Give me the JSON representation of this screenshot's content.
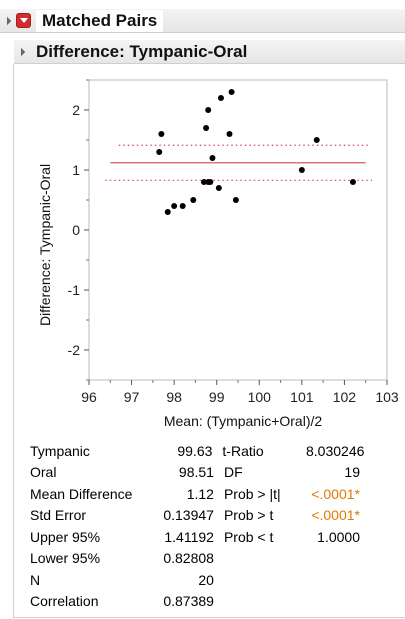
{
  "header": {
    "title": "Matched Pairs",
    "subtitle": "Difference: Tympanic-Oral"
  },
  "chart_data": {
    "type": "scatter",
    "xlabel": "Mean: (Tympanic+Oral)/2",
    "ylabel": "Difference: Tympanic-Oral",
    "xlim": [
      96,
      103
    ],
    "ylim": [
      -2.5,
      2.5
    ],
    "x_ticks": [
      96,
      97,
      98,
      99,
      100,
      101,
      102,
      103
    ],
    "y_ticks": [
      -2,
      -1,
      0,
      1,
      2
    ],
    "mean_difference": 1.12,
    "upper_95": 1.41192,
    "lower_95": 0.82808,
    "line_x_range": [
      96.5,
      102.5
    ],
    "ci_line_x_range": [
      96.7,
      102.6
    ],
    "mean_color": "#d6454f",
    "ci_color": "#d6454f",
    "point_color": "#000000",
    "points": [
      {
        "x": 97.65,
        "y": 1.3
      },
      {
        "x": 97.7,
        "y": 1.6
      },
      {
        "x": 97.85,
        "y": 0.3
      },
      {
        "x": 98.0,
        "y": 0.4
      },
      {
        "x": 98.2,
        "y": 0.4
      },
      {
        "x": 98.45,
        "y": 0.5
      },
      {
        "x": 98.7,
        "y": 0.8
      },
      {
        "x": 98.75,
        "y": 1.7
      },
      {
        "x": 98.8,
        "y": 2.0
      },
      {
        "x": 98.8,
        "y": 0.8
      },
      {
        "x": 98.9,
        "y": 1.2
      },
      {
        "x": 99.05,
        "y": 0.7
      },
      {
        "x": 99.1,
        "y": 2.2
      },
      {
        "x": 99.3,
        "y": 1.6
      },
      {
        "x": 99.35,
        "y": 2.3
      },
      {
        "x": 99.45,
        "y": 0.5
      },
      {
        "x": 101.0,
        "y": 1.0
      },
      {
        "x": 101.35,
        "y": 1.5
      },
      {
        "x": 102.2,
        "y": 0.8
      },
      {
        "x": 98.85,
        "y": 0.8
      }
    ]
  },
  "stats": [
    {
      "label": "Tympanic",
      "value": "99.63",
      "label2": "t-Ratio",
      "value2": "8.030246",
      "highlight": false
    },
    {
      "label": "Oral",
      "value": "98.51",
      "label2": "DF",
      "value2": "19",
      "highlight": false
    },
    {
      "label": "Mean Difference",
      "value": "1.12",
      "label2": "Prob > |t|",
      "value2": "<.0001*",
      "highlight": true
    },
    {
      "label": "Std Error",
      "value": "0.13947",
      "label2": "Prob > t",
      "value2": "<.0001*",
      "highlight": true
    },
    {
      "label": "Upper 95%",
      "value": "1.41192",
      "label2": "Prob < t",
      "value2": "1.0000",
      "highlight": false
    },
    {
      "label": "Lower 95%",
      "value": "0.82808",
      "label2": "",
      "value2": "",
      "highlight": false
    },
    {
      "label": "N",
      "value": "20",
      "label2": "",
      "value2": "",
      "highlight": false
    },
    {
      "label": "Correlation",
      "value": "0.87389",
      "label2": "",
      "value2": "",
      "highlight": false
    }
  ]
}
